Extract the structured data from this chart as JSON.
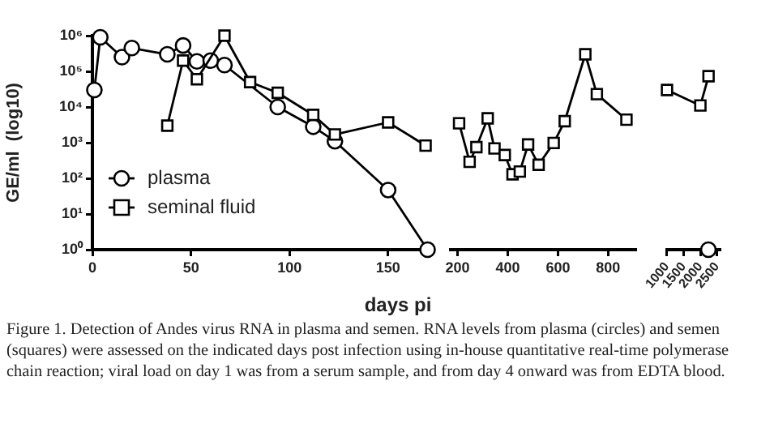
{
  "chart_data": [
    {
      "type": "line",
      "xlabel": "days pi",
      "ylabel": "GE/ml  (log10)",
      "log": "y",
      "grid": false,
      "legend": "bottom left",
      "xlim": [
        0,
        172
      ],
      "xticks": [
        0,
        50,
        100,
        150
      ],
      "ylim": [
        1,
        1000000
      ],
      "yticks": [
        {
          "value": 1,
          "label": "10⁰"
        },
        {
          "value": 10,
          "label": "10¹"
        },
        {
          "value": 100,
          "label": "10²"
        },
        {
          "value": 1000,
          "label": "10³"
        },
        {
          "value": 10000,
          "label": "10⁴"
        },
        {
          "value": 100000,
          "label": "10⁵"
        },
        {
          "value": 1000000,
          "label": "10⁶"
        }
      ],
      "series": [
        {
          "name": "plasma",
          "color": "#000000",
          "marker": "circle",
          "x": [
            1,
            4,
            15,
            20,
            38,
            46,
            53,
            60,
            67,
            94,
            112,
            123,
            150,
            170
          ],
          "values": [
            30000,
            900000,
            250000,
            450000,
            300000,
            530000,
            190000,
            200000,
            150000,
            10000,
            2800,
            1100,
            47,
            1
          ]
        },
        {
          "name": "seminal fluid",
          "color": "#000000",
          "marker": "square",
          "x": [
            38,
            46,
            53,
            67,
            80,
            94,
            112,
            123,
            150,
            169
          ],
          "values": [
            3000,
            200000,
            60000,
            1000000,
            50000,
            25000,
            6000,
            1700,
            3700,
            830
          ]
        }
      ],
      "annotations": [
        "Figure 1. Detection of Andes virus RNA in plasma and semen. RNA levels from plasma (circles) and semen (squares) were assessed on the indicated days post infection using in-house quantitative real-time polymerase chain reaction; viral load on day 1 was from a serum sample, and from day 4 onward was from EDTA blood."
      ]
    },
    {
      "type": "line",
      "log": "y",
      "grid": false,
      "tick_labels": "x",
      "xlim": [
        171,
        910
      ],
      "xticks": [
        200,
        400,
        600,
        800
      ],
      "ylim": [
        1,
        1000000
      ],
      "series": [
        {
          "color": "#000000",
          "marker": "square",
          "x": [
            206,
            248,
            275,
            320,
            347,
            388,
            419,
            448,
            481,
            523,
            583,
            627,
            709,
            755,
            873
          ],
          "values": [
            3500,
            290,
            750,
            4800,
            690,
            450,
            130,
            155,
            890,
            240,
            980,
            4000,
            300000,
            23000,
            4400
          ]
        }
      ]
    },
    {
      "type": "line",
      "log": "y",
      "grid": false,
      "tick_labels": "x",
      "xlim": [
        990,
        2580
      ],
      "xticks": [
        1000,
        1500,
        2000,
        2500
      ],
      "ylim": [
        1,
        1000000
      ],
      "series": [
        {
          "color": "#000000",
          "marker": "square",
          "x": [
            1000,
            2000,
            2245
          ],
          "values": [
            30000,
            11000,
            73000
          ]
        },
        {
          "color": "#000000",
          "marker": "circle",
          "x": [
            2240
          ],
          "values": [
            1
          ]
        }
      ]
    }
  ]
}
